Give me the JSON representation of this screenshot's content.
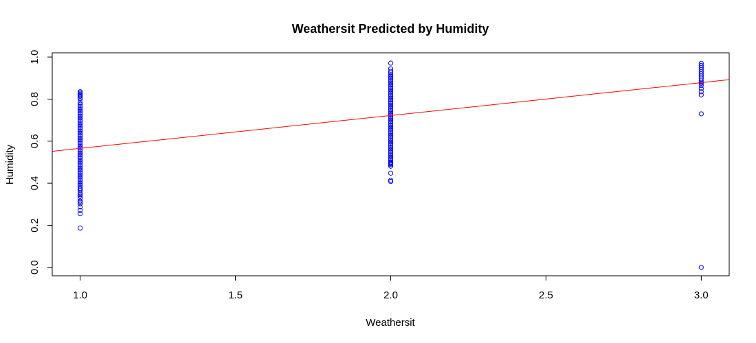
{
  "chart_data": {
    "type": "scatter",
    "title": "Weathersit Predicted by Humidity",
    "xlabel": "Weathersit",
    "ylabel": "Humidity",
    "xlim": [
      0.91,
      3.09
    ],
    "ylim": [
      -0.04,
      1.02
    ],
    "xticks": [
      1.0,
      1.5,
      2.0,
      2.5,
      3.0
    ],
    "xtick_labels": [
      "1.0",
      "1.5",
      "2.0",
      "2.5",
      "3.0"
    ],
    "yticks": [
      0.0,
      0.2,
      0.4,
      0.6,
      0.8,
      1.0
    ],
    "ytick_labels": [
      "0.0",
      "0.2",
      "0.4",
      "0.6",
      "0.8",
      "1.0"
    ],
    "grid": false,
    "colors": {
      "points": "#0000ff",
      "fit_line": "#ff0000"
    },
    "series": [
      {
        "x": 1,
        "y_dense_range": [
          0.375,
          0.79
        ],
        "y": [
          0.187,
          0.255,
          0.271,
          0.287,
          0.302,
          0.309,
          0.315,
          0.329,
          0.338,
          0.345,
          0.352,
          0.365,
          0.372,
          0.8,
          0.805,
          0.813,
          0.818,
          0.824,
          0.829,
          0.835
        ]
      },
      {
        "x": 2,
        "y_dense_range": [
          0.5,
          0.92
        ],
        "y": [
          0.408,
          0.414,
          0.448,
          0.481,
          0.488,
          0.492,
          0.495,
          0.5,
          0.925,
          0.932,
          0.944,
          0.971
        ]
      },
      {
        "x": 3,
        "y": [
          0.0,
          0.73,
          0.82,
          0.835,
          0.85,
          0.865,
          0.875,
          0.88,
          0.89,
          0.9,
          0.91,
          0.92,
          0.93,
          0.94,
          0.95,
          0.96,
          0.97
        ]
      }
    ],
    "fit_line": {
      "intercept": 0.4096,
      "slope": 0.1562
    }
  }
}
